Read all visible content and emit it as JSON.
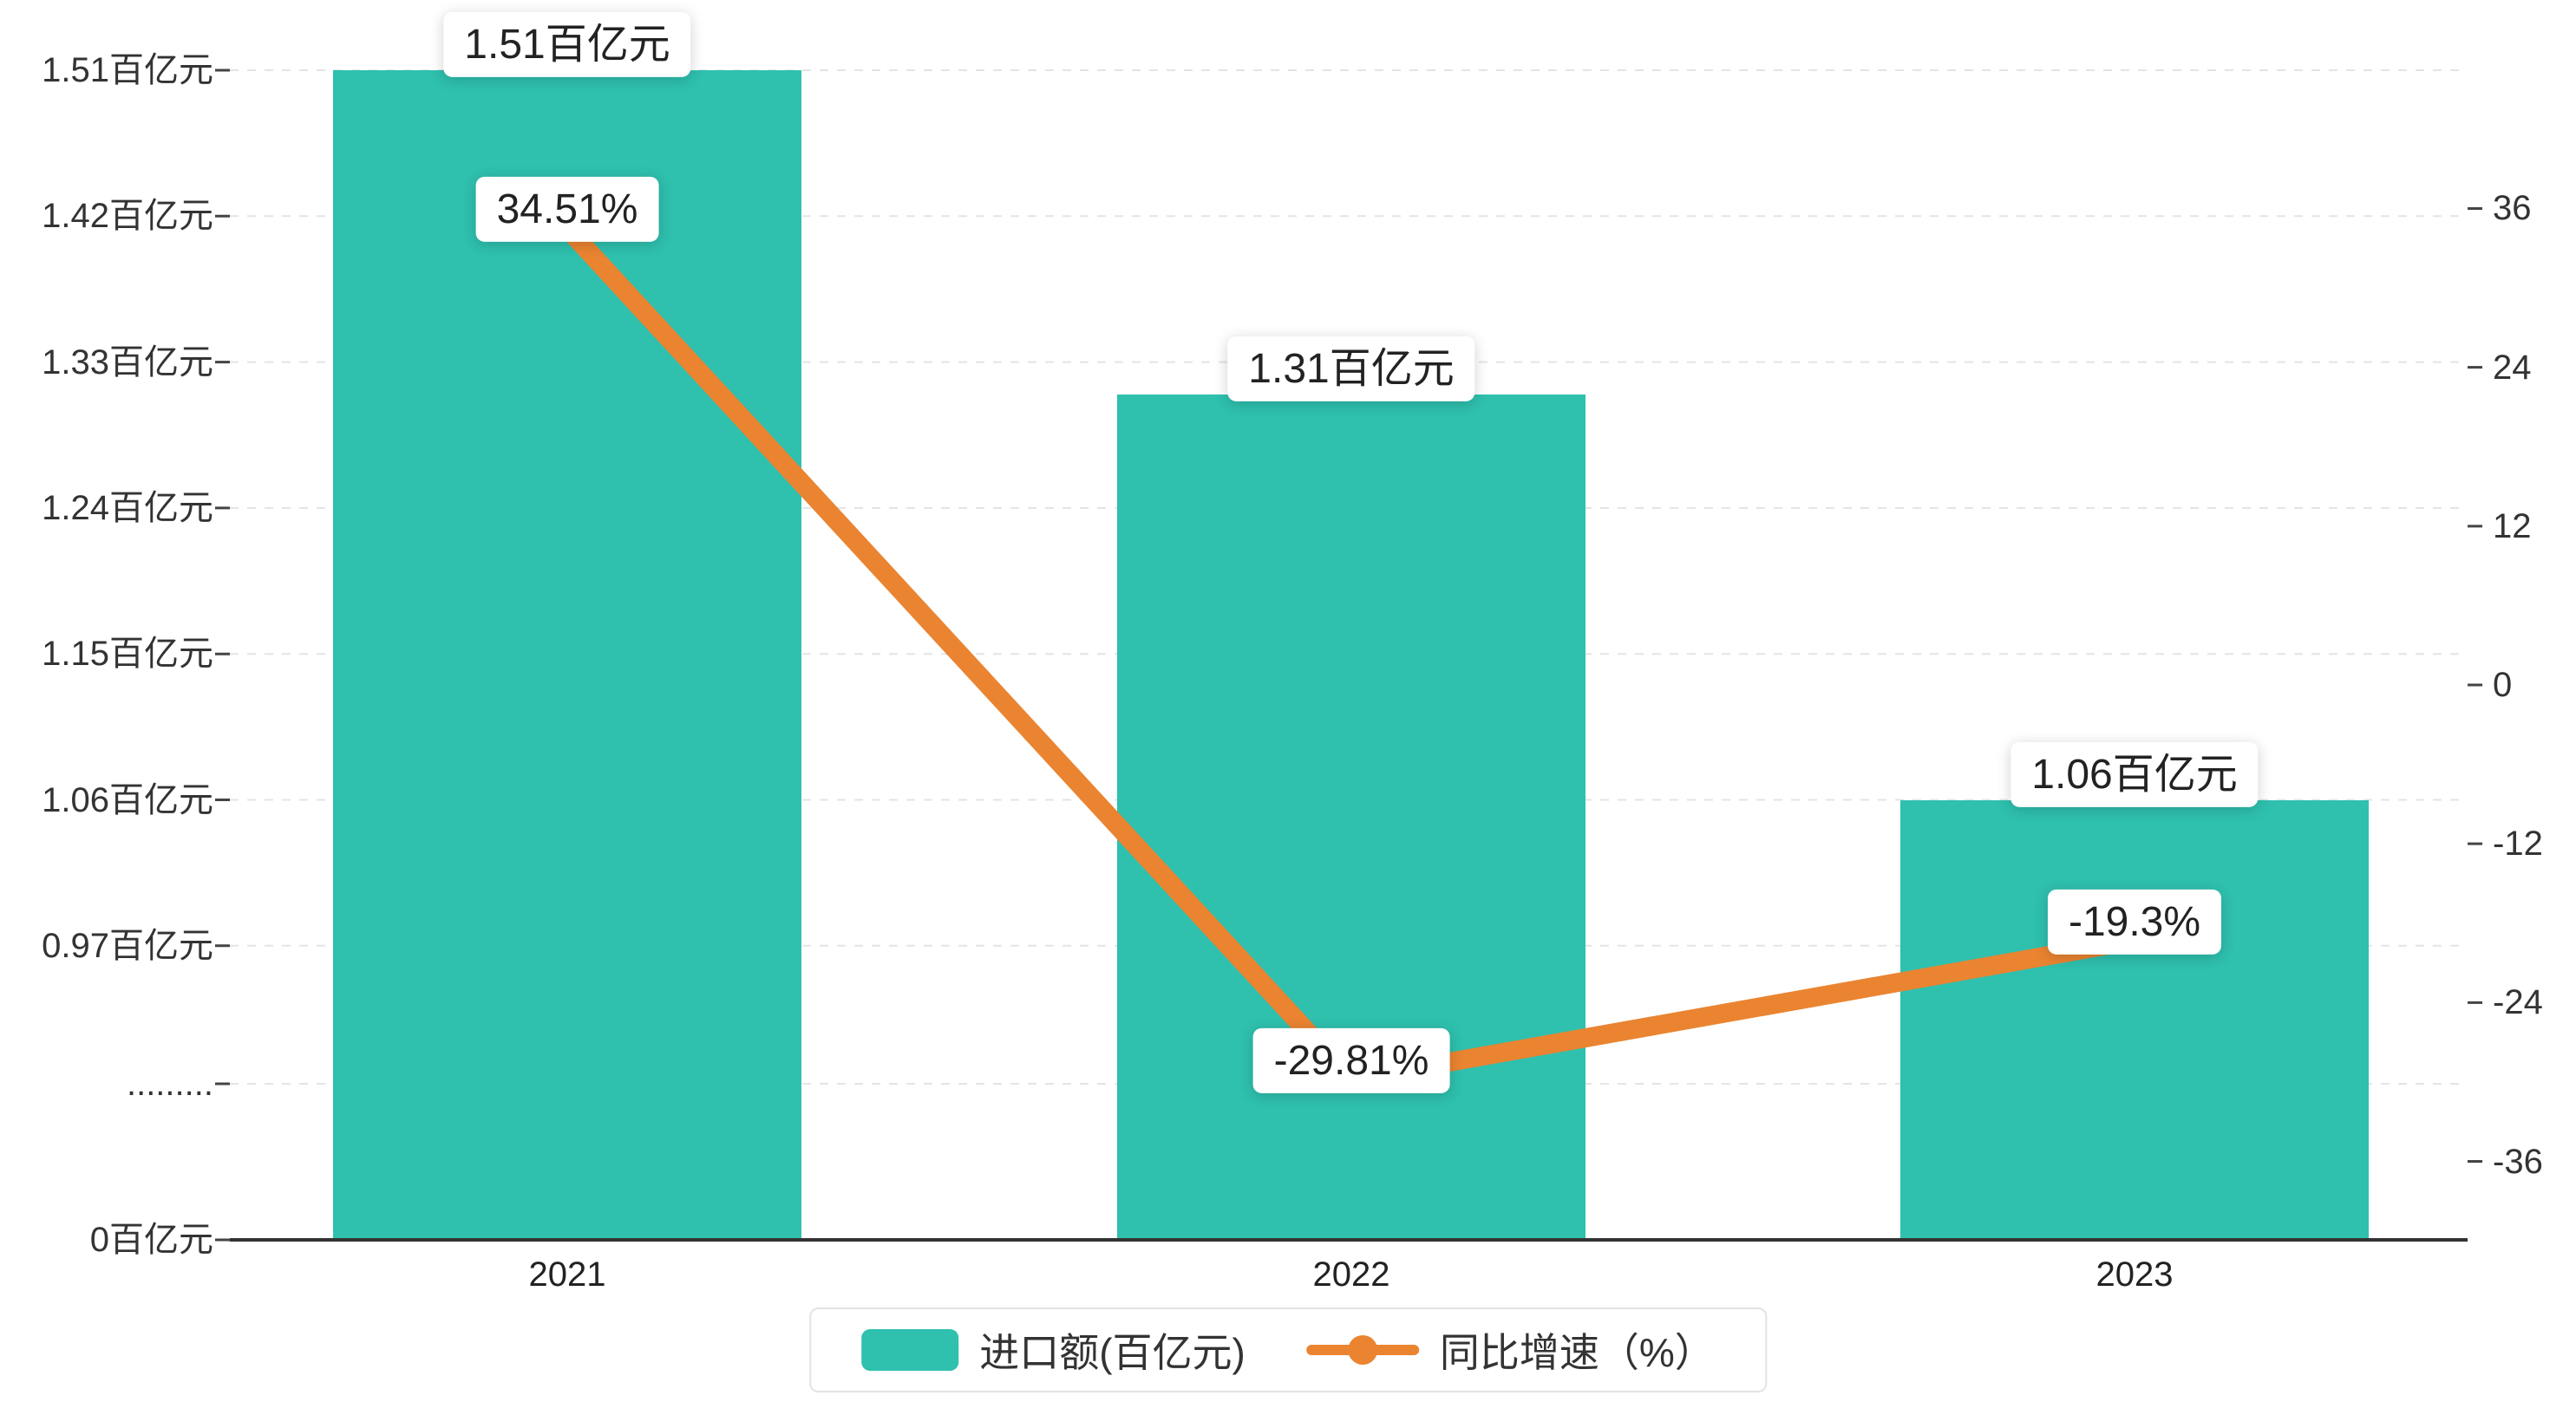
{
  "chart_data": {
    "type": "combo-bar-line",
    "title": "",
    "categories": [
      "2021",
      "2022",
      "2023"
    ],
    "series": [
      {
        "name": "进口额(百亿元)",
        "type": "bar",
        "axis": "left",
        "unit": "百亿元",
        "values": [
          1.51,
          1.31,
          1.06
        ],
        "data_labels": [
          "1.51百亿元",
          "1.31百亿元",
          "1.06百亿元"
        ],
        "color": "#2fc0ae"
      },
      {
        "name": "同比增速（%）",
        "type": "line",
        "axis": "right",
        "unit": "%",
        "values": [
          34.51,
          -29.81,
          -19.3
        ],
        "data_labels": [
          "34.51%",
          "-29.81%",
          "-19.3%"
        ],
        "color": "#ea8431"
      }
    ],
    "left_axis": {
      "broken": true,
      "ticks": [
        {
          "label": "1.51百亿元",
          "value": 1.51
        },
        {
          "label": "1.42百亿元",
          "value": 1.42
        },
        {
          "label": "1.33百亿元",
          "value": 1.33
        },
        {
          "label": "1.24百亿元",
          "value": 1.24
        },
        {
          "label": "1.15百亿元",
          "value": 1.15
        },
        {
          "label": "1.06百亿元",
          "value": 1.06
        },
        {
          "label": "0.97百亿元",
          "value": 0.97
        },
        {
          "label": ".........",
          "value": null
        },
        {
          "label": "0百亿元",
          "value": 0
        }
      ]
    },
    "right_axis": {
      "range": [
        -42,
        42
      ],
      "ticks": [
        {
          "label": "36",
          "value": 36
        },
        {
          "label": "24",
          "value": 24
        },
        {
          "label": "12",
          "value": 12
        },
        {
          "label": "0",
          "value": 0
        },
        {
          "label": "-12",
          "value": -12
        },
        {
          "label": "-24",
          "value": -24
        },
        {
          "label": "-36",
          "value": -36
        }
      ]
    },
    "legend": {
      "position": "bottom-center",
      "items": [
        "进口额(百亿元)",
        "同比增速（%）"
      ]
    },
    "grid": {
      "horizontal": true,
      "style": "dashed"
    }
  }
}
